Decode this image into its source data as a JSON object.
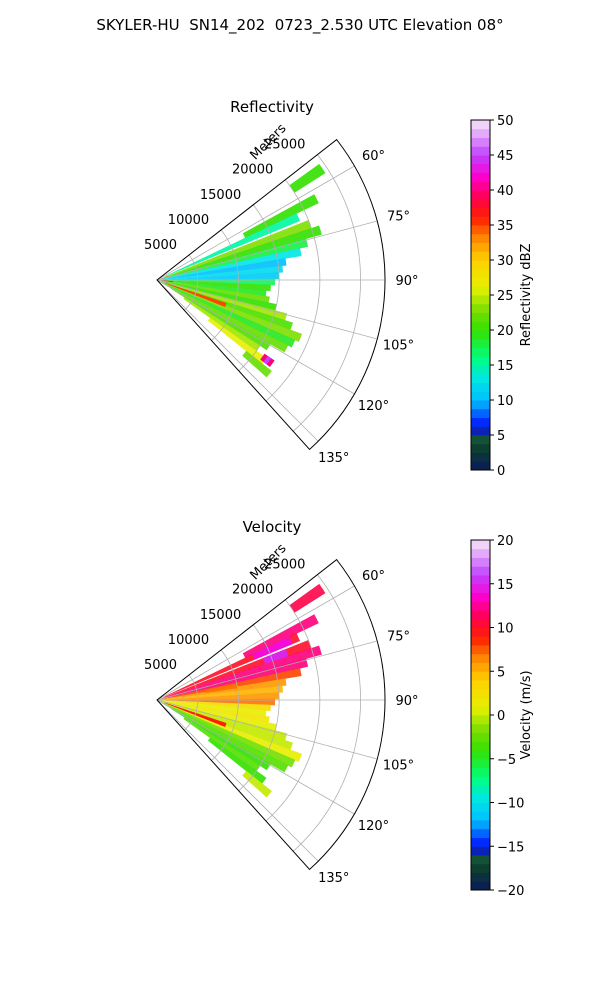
{
  "figure": {
    "title": "SKYLER-HU  SN14_202  0723_2.530 UTC Elevation 08°"
  },
  "chart_data": [
    {
      "type": "heatmap",
      "subtype": "polar-sector",
      "title": "Reflectivity",
      "radial_label": "Meters",
      "radial_ticks": [
        "5000",
        "10000",
        "15000",
        "20000",
        "25000"
      ],
      "radial_tick_values": [
        5000,
        10000,
        15000,
        20000,
        25000
      ],
      "rmax": 28000,
      "theta_range_deg": [
        52,
        138
      ],
      "theta_ticks": [
        "60°",
        "75°",
        "90°",
        "105°",
        "120°",
        "135°"
      ],
      "theta_tick_values": [
        60,
        75,
        90,
        105,
        120,
        135
      ],
      "colorbar": {
        "label": "Reflectivity dBZ",
        "range": [
          0,
          50
        ],
        "ticks": [
          "0",
          "5",
          "10",
          "15",
          "20",
          "25",
          "30",
          "35",
          "40",
          "45",
          "50"
        ],
        "tick_values": [
          0,
          5,
          10,
          15,
          20,
          25,
          30,
          35,
          40,
          45,
          50
        ]
      },
      "grid": true,
      "rays": [
        {
          "az": 56,
          "r0": 20000,
          "r1": 24500,
          "value": 20
        },
        {
          "az": 63,
          "r0": 12000,
          "r1": 22000,
          "value": 20
        },
        {
          "az": 66,
          "r0": 1000,
          "r1": 19000,
          "value": 15
        },
        {
          "az": 70,
          "r0": 500,
          "r1": 20000,
          "value": 23
        },
        {
          "az": 73,
          "r0": 500,
          "r1": 21000,
          "value": 20
        },
        {
          "az": 76,
          "r0": 500,
          "r1": 19000,
          "value": 18
        },
        {
          "az": 79,
          "r0": 500,
          "r1": 18000,
          "value": 13
        },
        {
          "az": 82,
          "r0": 500,
          "r1": 16000,
          "value": 10
        },
        {
          "az": 85,
          "r0": 500,
          "r1": 15500,
          "value": 12
        },
        {
          "az": 88,
          "r0": 500,
          "r1": 15000,
          "value": 11
        },
        {
          "az": 91,
          "r0": 500,
          "r1": 14500,
          "value": 17
        },
        {
          "az": 94,
          "r0": 500,
          "r1": 14000,
          "value": 20
        },
        {
          "az": 97,
          "r0": 500,
          "r1": 13500,
          "value": 19
        },
        {
          "az": 100,
          "r0": 500,
          "r1": 14000,
          "value": 22
        },
        {
          "az": 103,
          "r0": 500,
          "r1": 15000,
          "value": 20
        },
        {
          "az": 106,
          "r0": 500,
          "r1": 16500,
          "value": 24
        },
        {
          "az": 109,
          "r0": 500,
          "r1": 17500,
          "value": 21
        },
        {
          "az": 112,
          "r0": 500,
          "r1": 19000,
          "value": 23
        },
        {
          "az": 115,
          "r0": 500,
          "r1": 18500,
          "value": 19
        },
        {
          "az": 118,
          "r0": 500,
          "r1": 18000,
          "value": 22
        },
        {
          "az": 121,
          "r0": 2000,
          "r1": 16000,
          "value": 21
        },
        {
          "az": 124,
          "r0": 4000,
          "r1": 15000,
          "value": 24
        },
        {
          "az": 127,
          "r0": 8000,
          "r1": 16500,
          "value": 26
        },
        {
          "az": 130,
          "r0": 14000,
          "r1": 18000,
          "value": 22
        }
      ],
      "cells": [
        {
          "az": 72,
          "r0": 500,
          "r1": 1500,
          "value": 34
        },
        {
          "az": 96,
          "r0": 500,
          "r1": 2000,
          "value": 36
        },
        {
          "az": 110,
          "r0": 1000,
          "r1": 9000,
          "value": 35
        },
        {
          "az": 126,
          "r0": 16000,
          "r1": 17500,
          "value": 40
        },
        {
          "az": 126,
          "r0": 16500,
          "r1": 17000,
          "value": 45
        }
      ]
    },
    {
      "type": "heatmap",
      "subtype": "polar-sector",
      "title": "Velocity",
      "radial_label": "Meters",
      "radial_ticks": [
        "5000",
        "10000",
        "15000",
        "20000",
        "25000"
      ],
      "radial_tick_values": [
        5000,
        10000,
        15000,
        20000,
        25000
      ],
      "rmax": 28000,
      "theta_range_deg": [
        52,
        138
      ],
      "theta_ticks": [
        "60°",
        "75°",
        "90°",
        "105°",
        "120°",
        "135°"
      ],
      "theta_tick_values": [
        60,
        75,
        90,
        105,
        120,
        135
      ],
      "colorbar": {
        "label": "Velocity (m/s)",
        "range": [
          -20,
          20
        ],
        "ticks": [
          "−20",
          "−15",
          "−10",
          "−5",
          "0",
          "5",
          "10",
          "15",
          "20"
        ],
        "tick_values": [
          -20,
          -15,
          -10,
          -5,
          0,
          5,
          10,
          15,
          20
        ]
      },
      "grid": true,
      "rays": [
        {
          "az": 56,
          "r0": 20000,
          "r1": 24500,
          "value": 11
        },
        {
          "az": 63,
          "r0": 12000,
          "r1": 22000,
          "value": 12
        },
        {
          "az": 66,
          "r0": 1000,
          "r1": 19000,
          "value": 10
        },
        {
          "az": 70,
          "r0": 500,
          "r1": 20000,
          "value": 10
        },
        {
          "az": 73,
          "r0": 500,
          "r1": 21000,
          "value": 12
        },
        {
          "az": 76,
          "r0": 500,
          "r1": 19000,
          "value": 12
        },
        {
          "az": 79,
          "r0": 500,
          "r1": 18000,
          "value": 8
        },
        {
          "az": 82,
          "r0": 500,
          "r1": 16000,
          "value": 6
        },
        {
          "az": 85,
          "r0": 500,
          "r1": 15500,
          "value": 5
        },
        {
          "az": 88,
          "r0": 500,
          "r1": 15000,
          "value": 6
        },
        {
          "az": 91,
          "r0": 500,
          "r1": 14500,
          "value": 7
        },
        {
          "az": 94,
          "r0": 500,
          "r1": 14000,
          "value": 3
        },
        {
          "az": 97,
          "r0": 500,
          "r1": 13500,
          "value": 1
        },
        {
          "az": 100,
          "r0": 500,
          "r1": 14000,
          "value": 2
        },
        {
          "az": 103,
          "r0": 500,
          "r1": 15000,
          "value": 1
        },
        {
          "az": 106,
          "r0": 500,
          "r1": 16500,
          "value": 0
        },
        {
          "az": 109,
          "r0": 500,
          "r1": 17500,
          "value": 0
        },
        {
          "az": 112,
          "r0": 500,
          "r1": 19000,
          "value": 1
        },
        {
          "az": 115,
          "r0": 500,
          "r1": 18500,
          "value": -2
        },
        {
          "az": 118,
          "r0": 500,
          "r1": 18000,
          "value": -3
        },
        {
          "az": 121,
          "r0": 2000,
          "r1": 16000,
          "value": -4
        },
        {
          "az": 124,
          "r0": 4000,
          "r1": 15000,
          "value": -3
        },
        {
          "az": 127,
          "r0": 8000,
          "r1": 16500,
          "value": -4
        },
        {
          "az": 130,
          "r0": 14000,
          "r1": 18000,
          "value": 0
        }
      ],
      "cells": [
        {
          "az": 66,
          "r0": 13000,
          "r1": 18000,
          "value": 14
        },
        {
          "az": 70,
          "r0": 14000,
          "r1": 17000,
          "value": 15
        },
        {
          "az": 80,
          "r0": 6000,
          "r1": 10000,
          "value": 7
        },
        {
          "az": 110,
          "r0": 1000,
          "r1": 9000,
          "value": 9
        }
      ]
    }
  ]
}
